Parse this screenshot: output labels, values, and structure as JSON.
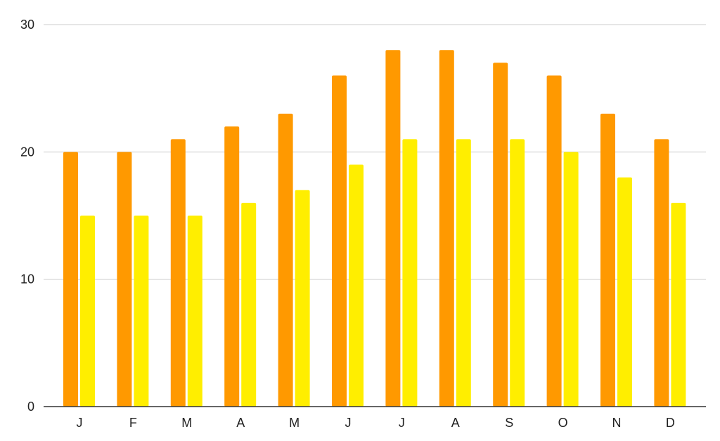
{
  "chart_data": {
    "type": "bar",
    "title": "",
    "xlabel": "",
    "ylabel": "",
    "categories": [
      "J",
      "F",
      "M",
      "A",
      "M",
      "J",
      "J",
      "A",
      "S",
      "O",
      "N",
      "D"
    ],
    "series": [
      {
        "values": [
          20,
          20,
          21,
          22,
          23,
          26,
          28,
          28,
          27,
          26,
          23,
          21
        ],
        "color": "#FF9900"
      },
      {
        "values": [
          15,
          15,
          15,
          16,
          17,
          19,
          21,
          21,
          21,
          20,
          18,
          16
        ],
        "color": "#FFEE00"
      }
    ],
    "ylim": [
      0,
      30
    ],
    "yticks": [
      "0",
      "10",
      "20",
      "30"
    ],
    "grid": true,
    "legend": "none"
  }
}
